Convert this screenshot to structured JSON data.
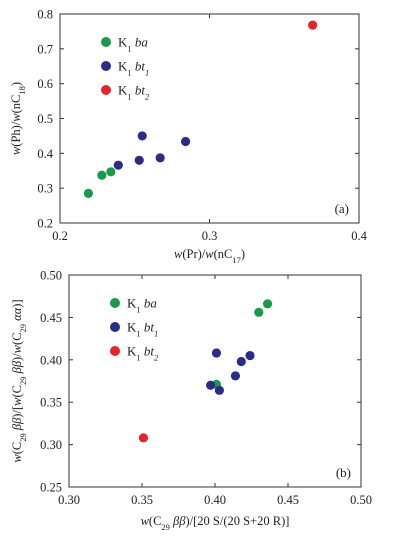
{
  "chart_data": [
    {
      "panel": "a",
      "type": "scatter",
      "tag": "(a)",
      "xlabel": "w(Pr)/w(nC17)",
      "ylabel": "w(Ph)/w(nC18)",
      "xlim": [
        0.2,
        0.4
      ],
      "ylim": [
        0.2,
        0.8
      ],
      "xticks": [
        {
          "value": 0.2,
          "label": "0.2"
        },
        {
          "value": 0.3,
          "label": "0.3"
        },
        {
          "value": 0.4,
          "label": "0.4"
        }
      ],
      "yticks": [
        {
          "value": 0.2,
          "label": "0.2"
        },
        {
          "value": 0.3,
          "label": "0.3"
        },
        {
          "value": 0.4,
          "label": "0.4"
        },
        {
          "value": 0.5,
          "label": "0.5"
        },
        {
          "value": 0.6,
          "label": "0.6"
        },
        {
          "value": 0.7,
          "label": "0.7"
        },
        {
          "value": 0.8,
          "label": "0.8"
        }
      ],
      "legend_position": "top-left",
      "series": [
        {
          "name": "K1ba",
          "color": "#1a9a4a",
          "points": [
            [
              0.219,
              0.285
            ],
            [
              0.228,
              0.337
            ],
            [
              0.234,
              0.347
            ]
          ]
        },
        {
          "name": "K1bt1",
          "color": "#2a2c88",
          "points": [
            [
              0.239,
              0.366
            ],
            [
              0.253,
              0.38
            ],
            [
              0.255,
              0.45
            ],
            [
              0.267,
              0.387
            ],
            [
              0.284,
              0.434
            ]
          ]
        },
        {
          "name": "K1bt2",
          "color": "#e0262b",
          "points": [
            [
              0.369,
              0.768
            ]
          ]
        }
      ]
    },
    {
      "panel": "b",
      "type": "scatter",
      "tag": "(b)",
      "xlabel": "w(C29 ββ)/[20 S/(20 S+20 R)]",
      "ylabel": "w(C29 ββ)/[w(C29 ββ)/w(C29 αα)]",
      "xlim": [
        0.3,
        0.5
      ],
      "ylim": [
        0.25,
        0.5
      ],
      "xticks": [
        {
          "value": 0.3,
          "label": "0.30"
        },
        {
          "value": 0.35,
          "label": "0.35"
        },
        {
          "value": 0.4,
          "label": "0.40"
        },
        {
          "value": 0.45,
          "label": "0.45"
        },
        {
          "value": 0.5,
          "label": "0.50"
        }
      ],
      "yticks": [
        {
          "value": 0.25,
          "label": "0.25"
        },
        {
          "value": 0.3,
          "label": "0.30"
        },
        {
          "value": 0.35,
          "label": "0.35"
        },
        {
          "value": 0.4,
          "label": "0.40"
        },
        {
          "value": 0.45,
          "label": "0.45"
        },
        {
          "value": 0.5,
          "label": "0.50"
        }
      ],
      "legend_position": "top-left",
      "series": [
        {
          "name": "K1ba",
          "color": "#1a9a4a",
          "points": [
            [
              0.401,
              0.371
            ],
            [
              0.43,
              0.456
            ],
            [
              0.436,
              0.466
            ]
          ]
        },
        {
          "name": "K1bt1",
          "color": "#2a2c88",
          "points": [
            [
              0.397,
              0.37
            ],
            [
              0.401,
              0.408
            ],
            [
              0.403,
              0.364
            ],
            [
              0.414,
              0.381
            ],
            [
              0.418,
              0.398
            ],
            [
              0.424,
              0.405
            ]
          ]
        },
        {
          "name": "K1bt2",
          "color": "#e0262b",
          "points": [
            [
              0.351,
              0.308
            ]
          ]
        }
      ]
    }
  ]
}
